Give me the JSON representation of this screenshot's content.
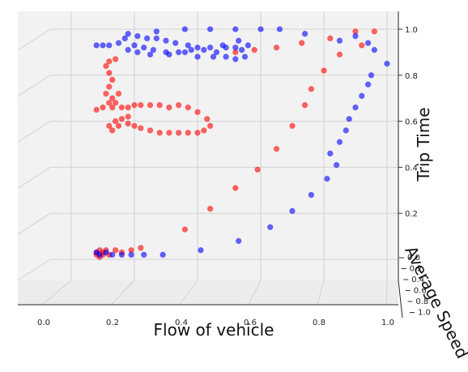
{
  "chart_data": {
    "type": "scatter",
    "projection": "3d",
    "title": "",
    "xlabel": "Flow of vehicle",
    "ylabel": "Average Speed",
    "zlabel": "Trip Time",
    "xlim": [
      0,
      1
    ],
    "zlim": [
      0,
      1
    ],
    "x_ticks": [
      "0.0",
      "0.2",
      "0.4",
      "0.6",
      "0.8",
      "1.0"
    ],
    "y_ticks": [
      "0.0",
      "0.2",
      "0.4",
      "0.6",
      "0.8",
      "1.0"
    ],
    "z_ticks": [
      "0.2",
      "0.4",
      "0.6",
      "0.8",
      "1.0"
    ],
    "grid": true,
    "series": [
      {
        "color": "#ff0000",
        "points": [
          [
            0.08,
            0.02
          ],
          [
            0.08,
            0.03
          ],
          [
            0.09,
            0.01
          ],
          [
            0.09,
            0.04
          ],
          [
            0.1,
            0.02
          ],
          [
            0.1,
            0.03
          ],
          [
            0.11,
            0.04
          ],
          [
            0.12,
            0.02
          ],
          [
            0.14,
            0.04
          ],
          [
            0.16,
            0.03
          ],
          [
            0.19,
            0.04
          ],
          [
            0.22,
            0.05
          ],
          [
            0.36,
            0.13
          ],
          [
            0.44,
            0.22
          ],
          [
            0.52,
            0.31
          ],
          [
            0.59,
            0.39
          ],
          [
            0.65,
            0.48
          ],
          [
            0.7,
            0.58
          ],
          [
            0.74,
            0.67
          ],
          [
            0.76,
            0.74
          ],
          [
            0.8,
            0.82
          ],
          [
            0.85,
            0.89
          ],
          [
            0.92,
            0.93
          ],
          [
            0.96,
            0.99
          ],
          [
            0.9,
            0.99
          ],
          [
            0.82,
            0.96
          ],
          [
            0.73,
            0.94
          ],
          [
            0.65,
            0.92
          ],
          [
            0.58,
            0.91
          ],
          [
            0.52,
            0.9
          ],
          [
            0.08,
            0.65
          ],
          [
            0.1,
            0.66
          ],
          [
            0.13,
            0.66
          ],
          [
            0.16,
            0.66
          ],
          [
            0.18,
            0.66
          ],
          [
            0.2,
            0.67
          ],
          [
            0.22,
            0.67
          ],
          [
            0.25,
            0.67
          ],
          [
            0.28,
            0.67
          ],
          [
            0.31,
            0.66
          ],
          [
            0.34,
            0.67
          ],
          [
            0.37,
            0.66
          ],
          [
            0.4,
            0.64
          ],
          [
            0.43,
            0.61
          ],
          [
            0.44,
            0.58
          ],
          [
            0.42,
            0.56
          ],
          [
            0.4,
            0.55
          ],
          [
            0.37,
            0.55
          ],
          [
            0.34,
            0.55
          ],
          [
            0.31,
            0.55
          ],
          [
            0.28,
            0.55
          ],
          [
            0.25,
            0.56
          ],
          [
            0.22,
            0.57
          ],
          [
            0.2,
            0.58
          ],
          [
            0.18,
            0.59
          ],
          [
            0.15,
            0.58
          ],
          [
            0.13,
            0.56
          ],
          [
            0.12,
            0.58
          ],
          [
            0.14,
            0.6
          ],
          [
            0.16,
            0.61
          ],
          [
            0.18,
            0.62
          ],
          [
            0.11,
            0.72
          ],
          [
            0.12,
            0.75
          ],
          [
            0.13,
            0.78
          ],
          [
            0.12,
            0.81
          ],
          [
            0.11,
            0.84
          ],
          [
            0.12,
            0.86
          ],
          [
            0.14,
            0.87
          ],
          [
            0.13,
            0.7
          ],
          [
            0.14,
            0.68
          ],
          [
            0.15,
            0.72
          ],
          [
            0.12,
            0.68
          ]
        ]
      },
      {
        "color": "#0000ff",
        "points": [
          [
            0.08,
            0.03
          ],
          [
            0.09,
            0.02
          ],
          [
            0.11,
            0.03
          ],
          [
            0.13,
            0.02
          ],
          [
            0.16,
            0.02
          ],
          [
            0.19,
            0.02
          ],
          [
            0.23,
            0.02
          ],
          [
            0.29,
            0.02
          ],
          [
            0.41,
            0.04
          ],
          [
            0.53,
            0.08
          ],
          [
            0.63,
            0.14
          ],
          [
            0.7,
            0.21
          ],
          [
            0.76,
            0.28
          ],
          [
            0.81,
            0.35
          ],
          [
            0.84,
            0.41
          ],
          [
            0.82,
            0.46
          ],
          [
            0.85,
            0.51
          ],
          [
            0.87,
            0.56
          ],
          [
            0.88,
            0.61
          ],
          [
            0.9,
            0.66
          ],
          [
            0.92,
            0.71
          ],
          [
            0.94,
            0.76
          ],
          [
            0.95,
            0.8
          ],
          [
            1.0,
            0.85
          ],
          [
            0.96,
            0.91
          ],
          [
            0.94,
            0.94
          ],
          [
            0.9,
            0.97
          ],
          [
            0.85,
            0.95
          ],
          [
            0.74,
            0.98
          ],
          [
            0.66,
            1.0
          ],
          [
            0.08,
            0.93
          ],
          [
            0.1,
            0.93
          ],
          [
            0.12,
            0.93
          ],
          [
            0.15,
            0.94
          ],
          [
            0.17,
            0.96
          ],
          [
            0.18,
            0.98
          ],
          [
            0.21,
            0.97
          ],
          [
            0.24,
            0.96
          ],
          [
            0.27,
            0.96
          ],
          [
            0.3,
            0.95
          ],
          [
            0.33,
            0.94
          ],
          [
            0.37,
            0.93
          ],
          [
            0.4,
            0.92
          ],
          [
            0.44,
            0.92
          ],
          [
            0.48,
            0.93
          ],
          [
            0.52,
            0.92
          ],
          [
            0.54,
            0.91
          ],
          [
            0.56,
            0.93
          ],
          [
            0.53,
            0.95
          ],
          [
            0.49,
            0.92
          ],
          [
            0.46,
            0.9
          ],
          [
            0.42,
            0.91
          ],
          [
            0.38,
            0.91
          ],
          [
            0.34,
            0.9
          ],
          [
            0.3,
            0.9
          ],
          [
            0.26,
            0.91
          ],
          [
            0.23,
            0.92
          ],
          [
            0.2,
            0.93
          ],
          [
            0.18,
            0.91
          ],
          [
            0.21,
            0.9
          ],
          [
            0.25,
            0.89
          ],
          [
            0.31,
            0.89
          ],
          [
            0.36,
            0.9
          ],
          [
            0.4,
            0.88
          ],
          [
            0.45,
            0.88
          ],
          [
            0.49,
            0.88
          ],
          [
            0.52,
            0.87
          ],
          [
            0.55,
            0.88
          ],
          [
            0.36,
            1.0
          ],
          [
            0.44,
            1.0
          ],
          [
            0.52,
            1.0
          ],
          [
            0.6,
            1.0
          ],
          [
            0.27,
            0.99
          ]
        ]
      }
    ]
  }
}
